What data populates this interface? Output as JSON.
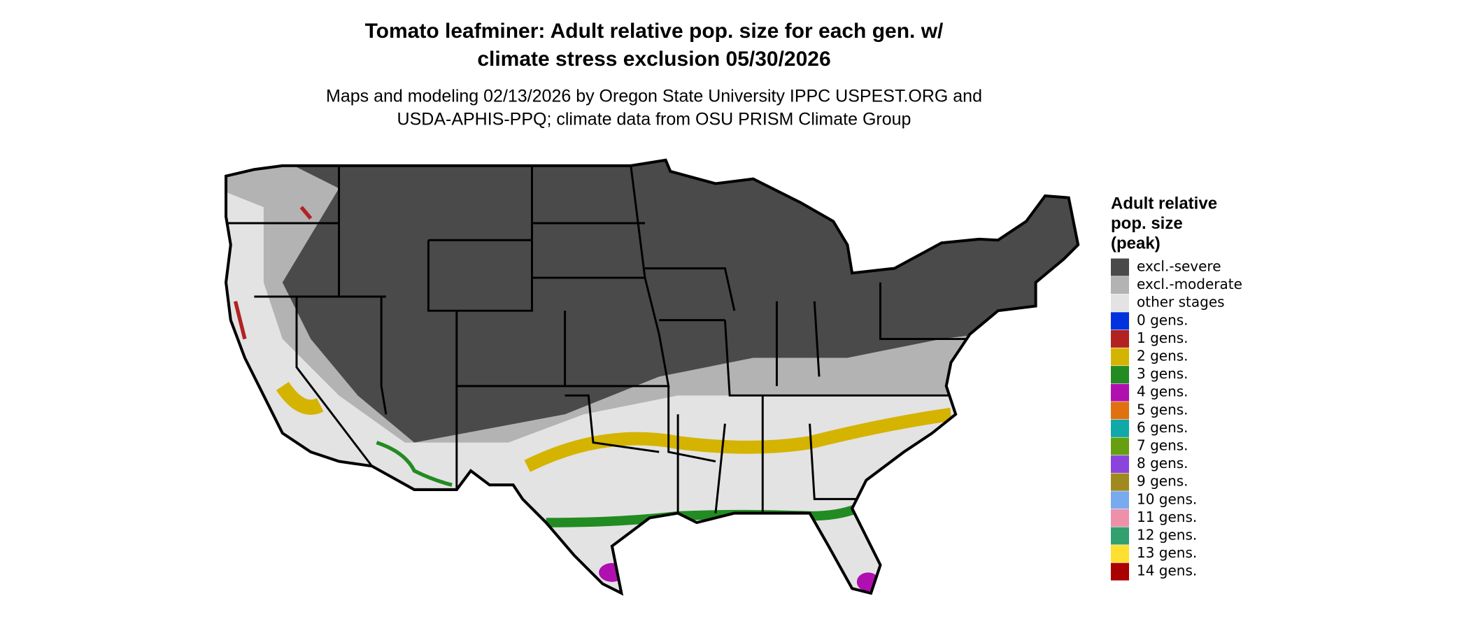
{
  "title": [
    "Tomato leafminer: Adult relative pop. size for each gen. w/",
    "climate stress exclusion 05/30/2026"
  ],
  "subtitle": [
    "Maps and modeling 02/13/2026 by Oregon State University IPPC USPEST.ORG and",
    "USDA-APHIS-PPQ; climate data from OSU PRISM Climate Group"
  ],
  "legend": {
    "title": [
      "Adult relative",
      "pop. size",
      "(peak)"
    ],
    "items": [
      {
        "label": "excl.-severe",
        "color": "#4a4a4a"
      },
      {
        "label": "excl.-moderate",
        "color": "#b3b3b3"
      },
      {
        "label": "other stages",
        "color": "#e3e3e3"
      },
      {
        "label": "0 gens.",
        "color": "#0033dd"
      },
      {
        "label": "1 gens.",
        "color": "#b22222"
      },
      {
        "label": "2 gens.",
        "color": "#d4b400"
      },
      {
        "label": "3 gens.",
        "color": "#228b22"
      },
      {
        "label": "4 gens.",
        "color": "#b010b0"
      },
      {
        "label": "5 gens.",
        "color": "#e07010"
      },
      {
        "label": "6 gens.",
        "color": "#10a8a8"
      },
      {
        "label": "7 gens.",
        "color": "#66a010"
      },
      {
        "label": "8 gens.",
        "color": "#8a44dd"
      },
      {
        "label": "9 gens.",
        "color": "#a08a20"
      },
      {
        "label": "10 gens.",
        "color": "#77aaee"
      },
      {
        "label": "11 gens.",
        "color": "#ee90aa"
      },
      {
        "label": "12 gens.",
        "color": "#33a070"
      },
      {
        "label": "13 gens.",
        "color": "#ffe030"
      },
      {
        "label": "14 gens.",
        "color": "#aa0000"
      }
    ]
  }
}
